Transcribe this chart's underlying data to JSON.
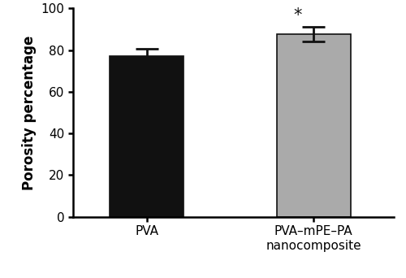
{
  "categories": [
    "PVA",
    "PVA–mPE–PA\nnanocomposite"
  ],
  "values": [
    77.0,
    87.5
  ],
  "errors": [
    3.5,
    3.5
  ],
  "bar_colors": [
    "#111111",
    "#aaaaaa"
  ],
  "bar_width": 0.55,
  "ylabel": "Porosity percentage",
  "ylim": [
    0,
    100
  ],
  "yticks": [
    0,
    20,
    40,
    60,
    80,
    100
  ],
  "significance_label": "*",
  "sig_bar_index": 1,
  "background_color": "#ffffff",
  "edge_color": "#111111",
  "error_color": "#111111",
  "ylabel_fontsize": 12,
  "tick_fontsize": 11,
  "label_fontsize": 11,
  "sig_fontsize": 15
}
